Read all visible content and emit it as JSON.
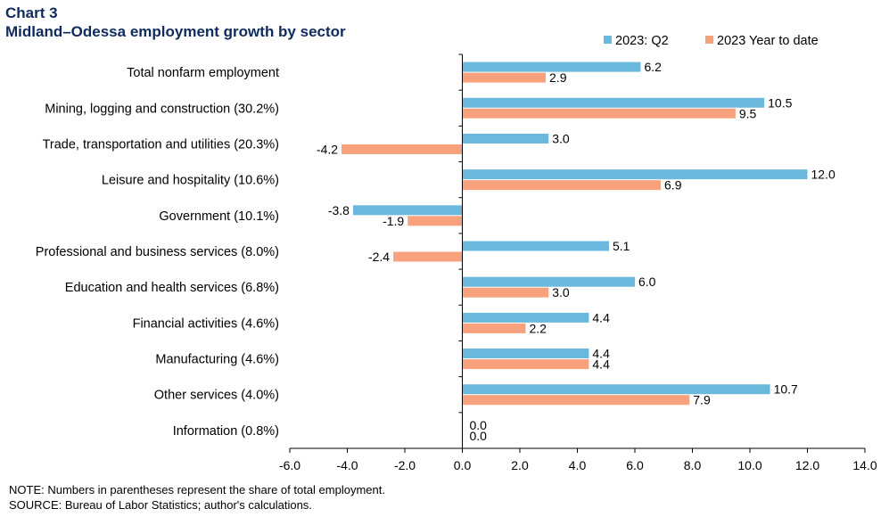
{
  "header": {
    "chart_number": "Chart 3",
    "title": "Midland–Odessa employment growth by sector"
  },
  "notes": {
    "note": "NOTE: Numbers in parentheses represent the share of total employment.",
    "source": "SOURCE: Bureau of Labor Statistics; author's calculations."
  },
  "colors": {
    "series_q2": "#6ab8dc",
    "series_ytd": "#f7a27c",
    "axis": "#000000"
  },
  "chart_data": {
    "type": "bar",
    "orientation": "horizontal",
    "title": "Midland–Odessa employment growth by sector",
    "categories": [
      "Total nonfarm employment",
      "Mining, logging and construction (30.2%)",
      "Trade, transportation and utilities (20.3%)",
      "Leisure and hospitality (10.6%)",
      "Government (10.1%)",
      "Professional and business services (8.0%)",
      "Education and health services (6.8%)",
      "Financial activities (4.6%)",
      "Manufacturing (4.6%)",
      "Other services (4.0%)",
      "Information (0.8%)"
    ],
    "series": [
      {
        "name": "2023: Q2",
        "values": [
          6.2,
          10.5,
          3.0,
          12.0,
          -3.8,
          5.1,
          6.0,
          4.4,
          4.4,
          10.7,
          0.0
        ]
      },
      {
        "name": "2023 Year to date",
        "values": [
          2.9,
          9.5,
          -4.2,
          6.9,
          -1.9,
          -2.4,
          3.0,
          2.2,
          4.4,
          7.9,
          0.0
        ]
      }
    ],
    "value_labels": [
      [
        "6.2",
        "10.5",
        "3.0",
        "12.0",
        "-3.8",
        "5.1",
        "6.0",
        "4.4",
        "4.4",
        "10.7",
        "0.0"
      ],
      [
        "2.9",
        "9.5",
        "-4.2",
        "6.9",
        "-1.9",
        "-2.4",
        "3.0",
        "2.2",
        "4.4",
        "7.9",
        "0.0"
      ]
    ],
    "xlim": [
      -6.0,
      14.0
    ],
    "xticks": [
      -6.0,
      -4.0,
      -2.0,
      0.0,
      2.0,
      4.0,
      6.0,
      8.0,
      10.0,
      12.0,
      14.0
    ],
    "xtick_labels": [
      "-6.0",
      "-4.0",
      "-2.0",
      "0.0",
      "2.0",
      "4.0",
      "6.0",
      "8.0",
      "10.0",
      "12.0",
      "14.0"
    ],
    "xlabel": "",
    "ylabel": "",
    "grid": false,
    "legend_position": "top-right"
  }
}
